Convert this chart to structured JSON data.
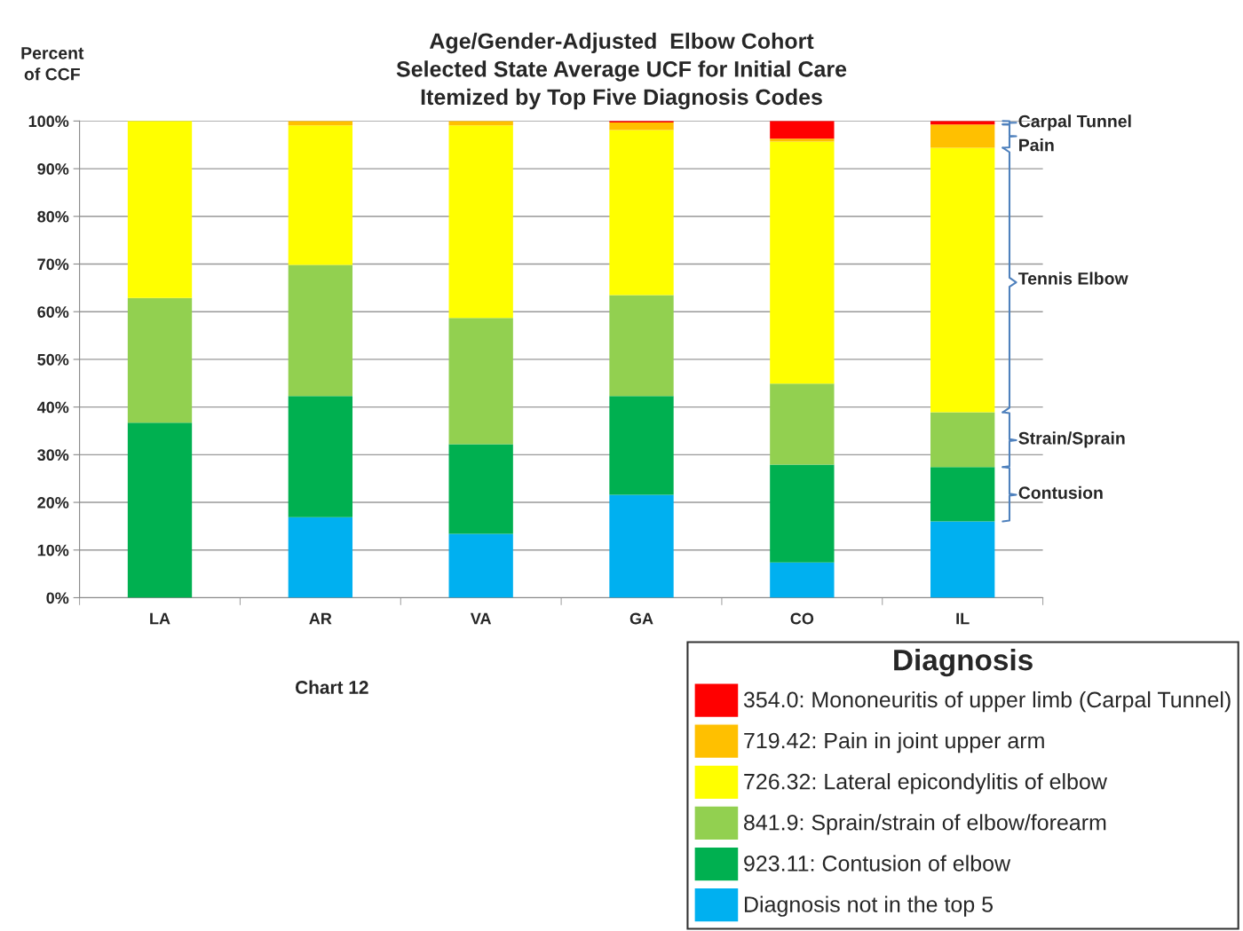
{
  "chart_data": {
    "type": "bar",
    "stacked": true,
    "title": "Age/Gender-Adjusted  Elbow Cohort\nSelected State Average UCF for Initial Care\nItemized by Top Five Diagnosis Codes",
    "ylabel": "Percent\nof CCF",
    "legend_title": "Diagnosis",
    "categories": [
      "LA",
      "AR",
      "VA",
      "GA",
      "CO",
      "IL"
    ],
    "series": [
      {
        "name": "Diagnosis not in the top 5",
        "color": "#00b0f0",
        "values": [
          0,
          16.9,
          13.4,
          21.6,
          7.4,
          16.0
        ]
      },
      {
        "name": "923.11: Contusion of elbow",
        "color": "#00b050",
        "values": [
          36.7,
          25.4,
          18.8,
          20.7,
          20.5,
          11.4
        ]
      },
      {
        "name": "841.9: Sprain/strain of elbow/forearm",
        "color": "#92d050",
        "values": [
          26.2,
          27.5,
          26.5,
          21.2,
          17.0,
          11.5
        ]
      },
      {
        "name": "726.32: Lateral epicondylitis of elbow",
        "color": "#ffff00",
        "values": [
          37.1,
          29.3,
          40.4,
          34.6,
          50.8,
          55.5
        ]
      },
      {
        "name": "719.42: Pain in joint upper arm",
        "color": "#ffc000",
        "values": [
          0,
          0.9,
          0.9,
          1.6,
          0.6,
          4.9
        ]
      },
      {
        "name": "354.0: Mononeuritis of upper limb (Carpal Tunnel)",
        "color": "#ff0000",
        "values": [
          0,
          0,
          0,
          0.3,
          3.7,
          0.7
        ]
      }
    ],
    "ylim": [
      0,
      100
    ],
    "yticks": [
      {
        "value": 0,
        "label": "0%"
      },
      {
        "value": 10,
        "label": "10%"
      },
      {
        "value": 20,
        "label": "20%"
      },
      {
        "value": 30,
        "label": "30%"
      },
      {
        "value": 40,
        "label": "40%"
      },
      {
        "value": 50,
        "label": "50%"
      },
      {
        "value": 60,
        "label": "60%"
      },
      {
        "value": 70,
        "label": "70%"
      },
      {
        "value": 80,
        "label": "80%"
      },
      {
        "value": 90,
        "label": "90%"
      },
      {
        "value": 100,
        "label": "100%"
      }
    ],
    "grid": "y",
    "legend": "bottom right",
    "annotations": [
      "Carpal Tunnel",
      "Pain",
      "Tennis Elbow",
      "Strain/Sprain",
      "Contusion",
      "Chart 12"
    ]
  }
}
